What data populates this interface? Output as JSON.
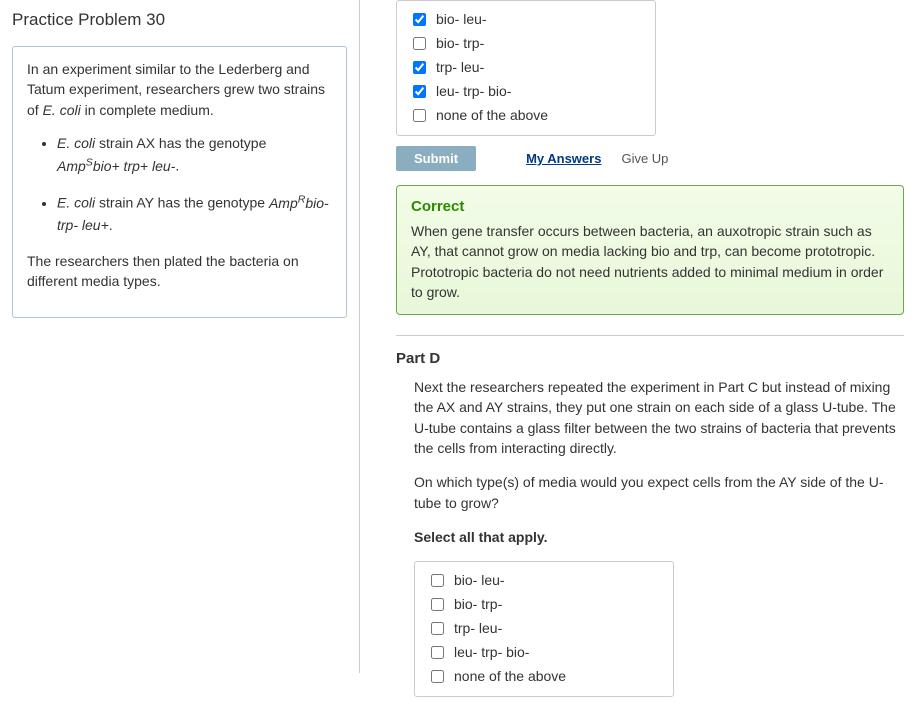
{
  "problem_title": "Practice Problem 30",
  "intro_html": "In an experiment similar to the Lederberg and Tatum experiment, researchers grew two strains of <span class='italic'>E. coli</span> in complete medium.",
  "bullet1_html": "<span class='italic'>E. coli</span> strain AX has the genotype <span class='italic'>Amp<span class='sup'>S</span>bio+ trp+ leu-</span>.",
  "bullet2_html": "<span class='italic'>E. coli</span> strain AY has the genotype <span class='italic'>Amp<span class='sup'>R</span>bio- trp- leu+</span>.",
  "followup": "The researchers then plated the bacteria on different media types.",
  "partC": {
    "options": [
      {
        "label": "bio- leu-",
        "checked": true
      },
      {
        "label": "bio- trp-",
        "checked": false
      },
      {
        "label": "trp- leu-",
        "checked": true
      },
      {
        "label": "leu- trp- bio-",
        "checked": true
      },
      {
        "label": "none of the above",
        "checked": false
      }
    ],
    "submit": "Submit",
    "my_answers": "My Answers",
    "give_up": "Give Up",
    "feedback_title": "Correct",
    "feedback_text": "When gene transfer occurs between bacteria, an auxotropic strain such as AY, that cannot grow on media lacking bio and trp, can become prototropic. Prototropic bacteria do not need nutrients added to minimal medium in order to grow."
  },
  "partD": {
    "label": "Part D",
    "para1": "Next the researchers repeated the experiment in Part C but instead of mixing the AX and AY strains, they put one strain on each side of a glass U-tube. The U-tube contains a glass filter between the two strains of bacteria that prevents the cells from interacting directly.",
    "para2": "On which type(s) of media would you expect cells from the AY side of the U-tube to grow?",
    "instruction": "Select all that apply.",
    "options": [
      {
        "label": "bio- leu-",
        "checked": false
      },
      {
        "label": "bio- trp-",
        "checked": false
      },
      {
        "label": "trp- leu-",
        "checked": false
      },
      {
        "label": "leu- trp- bio-",
        "checked": false
      },
      {
        "label": "none of the above",
        "checked": false
      }
    ]
  }
}
